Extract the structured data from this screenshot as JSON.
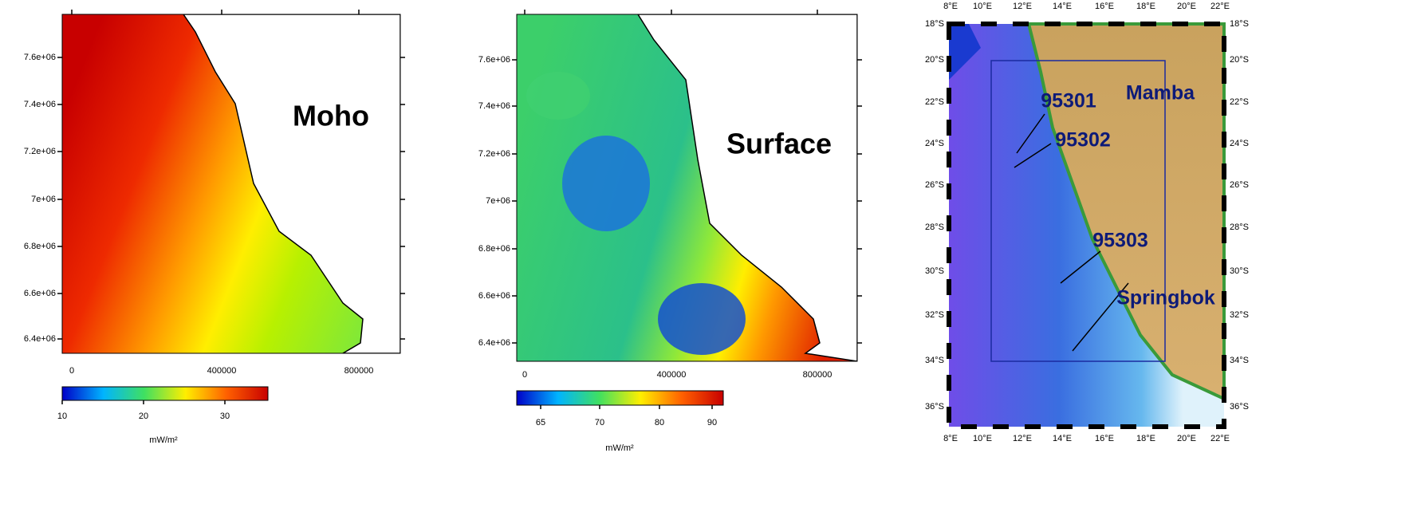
{
  "panels": [
    {
      "label": "Moho",
      "y_ticks": [
        "7.6e+06",
        "7.4e+06",
        "7.2e+06",
        "7e+06",
        "6.8e+06",
        "6.6e+06",
        "6.4e+06"
      ],
      "x_ticks": [
        "0",
        "400000",
        "800000"
      ],
      "colorbar_ticks": [
        "10",
        "20",
        "30"
      ],
      "colorbar_unit": "mW/m²"
    },
    {
      "label": "Surface",
      "y_ticks": [
        "7.6e+06",
        "7.4e+06",
        "7.2e+06",
        "7e+06",
        "6.8e+06",
        "6.6e+06",
        "6.4e+06"
      ],
      "x_ticks": [
        "0",
        "400000",
        "800000"
      ],
      "colorbar_ticks": [
        "65",
        "70",
        "80",
        "90"
      ],
      "colorbar_unit": "mW/m²"
    }
  ],
  "map": {
    "lon_labels": [
      "8°E",
      "10°E",
      "12°E",
      "14°E",
      "16°E",
      "18°E",
      "20°E",
      "22°E"
    ],
    "lat_labels": [
      "18°S",
      "20°S",
      "22°S",
      "24°S",
      "26°S",
      "28°S",
      "30°S",
      "32°S",
      "34°S",
      "36°S"
    ],
    "annotations": [
      "95301",
      "95302",
      "95303",
      "Mamba",
      "Springbok"
    ]
  }
}
